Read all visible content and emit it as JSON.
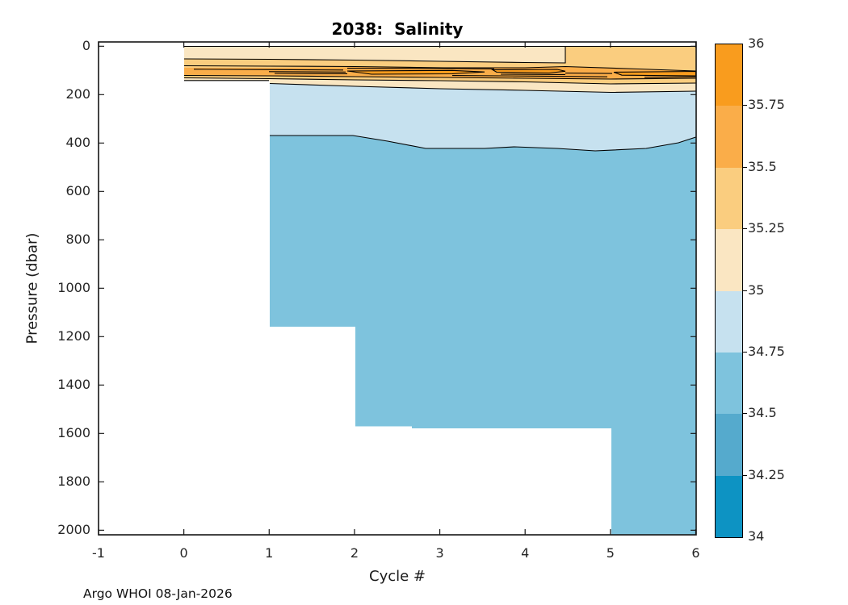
{
  "title": "2038:  Salinity",
  "footer_note": "Argo WHOI 08-Jan-2026",
  "axes": {
    "xlabel": "Cycle #",
    "ylabel": "Pressure (dbar)",
    "x_tick_labels": [
      "-1",
      "0",
      "1",
      "2",
      "3",
      "4",
      "5",
      "6"
    ],
    "y_tick_labels": [
      "0",
      "200",
      "400",
      "600",
      "800",
      "1000",
      "1200",
      "1400",
      "1600",
      "1800",
      "2000"
    ]
  },
  "colorbar": {
    "tick_labels": [
      "36",
      "35.75",
      "35.5",
      "35.25",
      "35",
      "34.75",
      "34.5",
      "34.25",
      "34"
    ],
    "band_colors_top_to_bottom": [
      "#F99C1E",
      "#FAAD49",
      "#FACD7F",
      "#FAE6C2",
      "#C6E1EF",
      "#7EC3DD",
      "#55AACD",
      "#0D93C3"
    ]
  },
  "colors": {
    "contour_line": "#000000",
    "axis": "#151515",
    "tick_text": "#262626",
    "plot_bg": "#FFFFFF",
    "band_35_75__36": "#F99C1E",
    "band_35_5__35_75": "#FAAD49",
    "band_35_25__35_5": "#FACD7F",
    "band_35__35_25": "#FAE6C2",
    "band_34_75__35": "#C6E1EF",
    "band_34_5__34_75": "#7EC3DD",
    "band_34_25__34_5": "#55AACD",
    "band_34__34_25": "#0D93C3"
  },
  "chart_data": {
    "type": "filled_contour",
    "variable": "Salinity",
    "float_id": "2038",
    "title": "2038:  Salinity",
    "xlabel": "Cycle #",
    "ylabel": "Pressure (dbar)",
    "x_range": [
      -1,
      6
    ],
    "y_range": [
      0,
      2000
    ],
    "y_axis_reversed": true,
    "grid": false,
    "legend_position": "colorbar-right",
    "colorbar_levels": [
      34,
      34.25,
      34.5,
      34.75,
      35,
      35.25,
      35.5,
      35.75,
      36
    ],
    "cycles_with_data": [
      0,
      1,
      2,
      3,
      4,
      5,
      6
    ],
    "profile_top_dbar": 20,
    "profile_max_depth_dbar_by_segment": [
      {
        "cycles": "0-1",
        "max_dbar": 145
      },
      {
        "cycles": "1-2",
        "max_dbar": 1160
      },
      {
        "cycles": "2-5",
        "max_dbar": 1580
      },
      {
        "cycles": "5-6",
        "max_dbar": 2020
      }
    ],
    "surface_band_by_region": [
      {
        "cycle_range": [
          0,
          4.5
        ],
        "band": "35-35.25"
      },
      {
        "cycle_range": [
          4.5,
          6
        ],
        "band": "35.25-35.5"
      }
    ],
    "subsurface_maximum": {
      "band": "35.75-36",
      "depth_dbar_range": [
        95,
        130
      ],
      "cycle_range": [
        2,
        6
      ]
    },
    "contour_depths_dbar": {
      "cycles": [
        1,
        2,
        3,
        4,
        5,
        6
      ],
      "s35_25_upper": [
        52,
        58,
        62,
        67,
        70,
        null
      ],
      "s35_00": [
        155,
        165,
        175,
        182,
        190,
        186
      ],
      "s34_75": [
        370,
        372,
        422,
        418,
        430,
        378
      ]
    },
    "deep_band_below_430_dbar": "34.5-34.75"
  }
}
